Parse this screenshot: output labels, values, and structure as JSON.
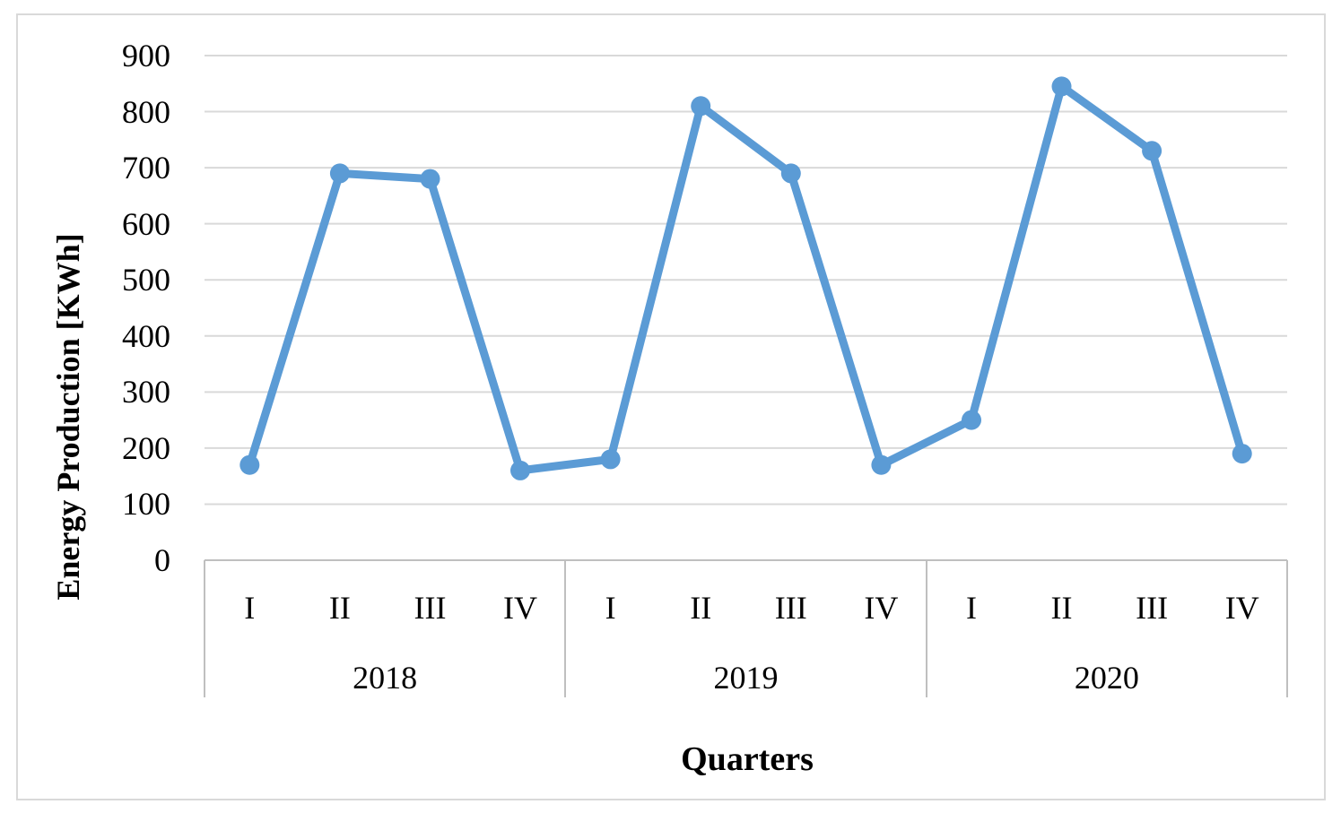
{
  "chart_data": {
    "type": "line",
    "title": "",
    "ylabel": "Energy Production [KWh]",
    "xlabel": "Quarters",
    "ylim": [
      0,
      900
    ],
    "ytick_step": 100,
    "yticks": [
      0,
      100,
      200,
      300,
      400,
      500,
      600,
      700,
      800,
      900
    ],
    "groups": [
      {
        "year": "2018",
        "quarters": [
          "I",
          "II",
          "III",
          "IV"
        ],
        "values": [
          170,
          690,
          680,
          160
        ]
      },
      {
        "year": "2019",
        "quarters": [
          "I",
          "II",
          "III",
          "IV"
        ],
        "values": [
          180,
          810,
          690,
          170
        ]
      },
      {
        "year": "2020",
        "quarters": [
          "I",
          "II",
          "III",
          "IV"
        ],
        "values": [
          250,
          845,
          730,
          190
        ]
      }
    ],
    "series": [
      {
        "name": "Energy Production",
        "values": [
          170,
          690,
          680,
          160,
          180,
          810,
          690,
          170,
          250,
          845,
          730,
          190
        ]
      }
    ],
    "marker": "circle",
    "grid": true,
    "legend_position": "none",
    "colors": {
      "series": "#5B9BD5",
      "gridline": "#D9D9D9",
      "axis_line": "#BFBFBF",
      "text": "#000000",
      "frame_border": "#D9D9D9",
      "background": "#FFFFFF"
    }
  }
}
